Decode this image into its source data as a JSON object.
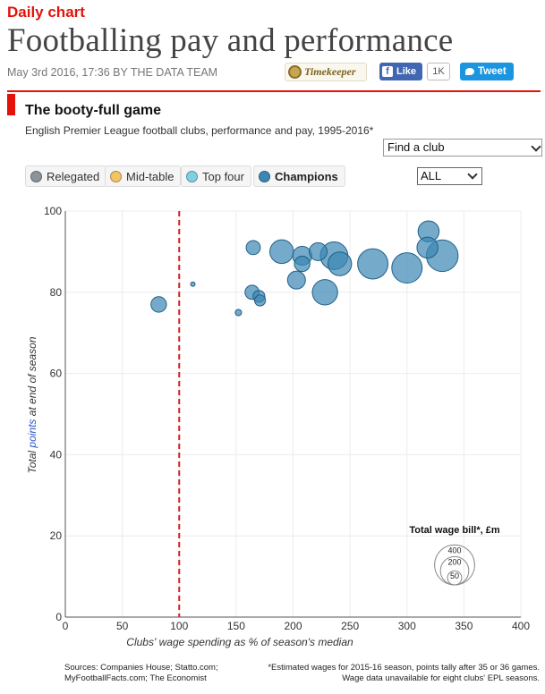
{
  "header": {
    "kicker": "Daily chart",
    "headline": "Footballing pay and performance",
    "byline": "May 3rd 2016, 17:36 BY THE DATA TEAM",
    "timekeeper": "Timekeeper",
    "like_label": "Like",
    "like_count": "1K",
    "tweet_label": "Tweet",
    "brand_color": "#e3120b"
  },
  "controls": {
    "club_select": "Find a club",
    "season_select": "ALL",
    "legend": [
      {
        "label": "Relegated",
        "color": "#8c9399",
        "active": false
      },
      {
        "label": "Mid-table",
        "color": "#f2c464",
        "active": false
      },
      {
        "label": "Top four",
        "color": "#7fd0e3",
        "active": false
      },
      {
        "label": "Champions",
        "color": "#3a86b4",
        "active": true
      }
    ]
  },
  "chart_data": {
    "type": "scatter",
    "title": "The booty-full game",
    "subtitle": "English Premier League football clubs, performance and pay, 1995-2016*",
    "xlabel": "Clubs' wage spending as % of season's median",
    "ylabel_parts": [
      "Total ",
      "points",
      " at end of season"
    ],
    "xlim": [
      0,
      400
    ],
    "ylim": [
      0,
      100
    ],
    "xticks": [
      0,
      50,
      100,
      150,
      200,
      250,
      300,
      350,
      400
    ],
    "yticks": [
      0,
      20,
      40,
      60,
      80,
      100
    ],
    "reference_line": {
      "x": 100,
      "style": "dashed",
      "color": "#d61f1f"
    },
    "point_color": "#3a86b4",
    "series": [
      {
        "group": "Champions",
        "points": [
          {
            "x": 82,
            "y": 77,
            "wage": 60
          },
          {
            "x": 112,
            "y": 82,
            "wage": 5
          },
          {
            "x": 152,
            "y": 75,
            "wage": 10
          },
          {
            "x": 165,
            "y": 91,
            "wage": 50
          },
          {
            "x": 164,
            "y": 80,
            "wage": 50
          },
          {
            "x": 170,
            "y": 79,
            "wage": 35
          },
          {
            "x": 171,
            "y": 78,
            "wage": 30
          },
          {
            "x": 190,
            "y": 90,
            "wage": 140
          },
          {
            "x": 203,
            "y": 83,
            "wage": 80
          },
          {
            "x": 208,
            "y": 89,
            "wage": 90
          },
          {
            "x": 208,
            "y": 87,
            "wage": 60
          },
          {
            "x": 222,
            "y": 90,
            "wage": 80
          },
          {
            "x": 228,
            "y": 80,
            "wage": 160
          },
          {
            "x": 236,
            "y": 89,
            "wage": 190
          },
          {
            "x": 241,
            "y": 87,
            "wage": 140
          },
          {
            "x": 270,
            "y": 87,
            "wage": 230
          },
          {
            "x": 300,
            "y": 86,
            "wage": 230
          },
          {
            "x": 319,
            "y": 95,
            "wage": 110
          },
          {
            "x": 318,
            "y": 91,
            "wage": 110
          },
          {
            "x": 331,
            "y": 89,
            "wage": 250
          }
        ]
      }
    ],
    "size_legend": {
      "title": "Total wage bill*, £m",
      "values": [
        400,
        200,
        50
      ]
    }
  },
  "footer": {
    "sources_line1": "Sources: Companies House; Statto.com;",
    "sources_line2": "MyFootballFacts.com; The Economist",
    "note_line1": "*Estimated wages for 2015-16 season, points tally after 35 or 36 games.",
    "note_line2": "Wage data unavailable for eight clubs' EPL seasons."
  }
}
